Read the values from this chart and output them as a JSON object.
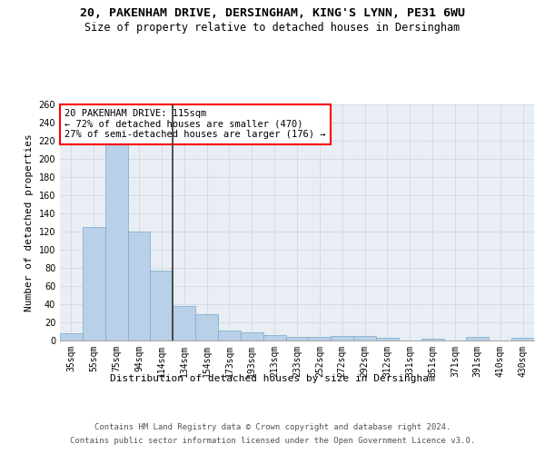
{
  "title_line1": "20, PAKENHAM DRIVE, DERSINGHAM, KING'S LYNN, PE31 6WU",
  "title_line2": "Size of property relative to detached houses in Dersingham",
  "xlabel": "Distribution of detached houses by size in Dersingham",
  "ylabel": "Number of detached properties",
  "categories": [
    "35sqm",
    "55sqm",
    "75sqm",
    "94sqm",
    "114sqm",
    "134sqm",
    "154sqm",
    "173sqm",
    "193sqm",
    "213sqm",
    "233sqm",
    "252sqm",
    "272sqm",
    "292sqm",
    "312sqm",
    "331sqm",
    "351sqm",
    "371sqm",
    "391sqm",
    "410sqm",
    "430sqm"
  ],
  "values": [
    8,
    125,
    218,
    120,
    77,
    38,
    29,
    11,
    9,
    6,
    4,
    4,
    5,
    5,
    3,
    0,
    2,
    0,
    4,
    0,
    3
  ],
  "bar_color": "#b8d0e8",
  "bar_edge_color": "#7aaac8",
  "vline_color": "#333333",
  "annotation_text": "20 PAKENHAM DRIVE: 115sqm\n← 72% of detached houses are smaller (470)\n27% of semi-detached houses are larger (176) →",
  "annotation_box_color": "white",
  "annotation_box_edgecolor": "red",
  "ylim": [
    0,
    260
  ],
  "yticks": [
    0,
    20,
    40,
    60,
    80,
    100,
    120,
    140,
    160,
    180,
    200,
    220,
    240,
    260
  ],
  "grid_color": "#d0d8e0",
  "bg_color": "#e8eef4",
  "footer_line1": "Contains HM Land Registry data © Crown copyright and database right 2024.",
  "footer_line2": "Contains public sector information licensed under the Open Government Licence v3.0.",
  "title_fontsize": 9.5,
  "subtitle_fontsize": 8.5,
  "axis_label_fontsize": 8,
  "tick_fontsize": 7,
  "annotation_fontsize": 7.5,
  "footer_fontsize": 6.5
}
